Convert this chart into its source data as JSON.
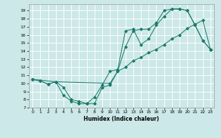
{
  "xlabel": "Humidex (Indice chaleur)",
  "background_color": "#cce8e8",
  "grid_color": "#ffffff",
  "line_color": "#1a7a6a",
  "xlim": [
    -0.5,
    23.5
  ],
  "ylim": [
    7,
    19.8
  ],
  "xticks": [
    0,
    1,
    2,
    3,
    4,
    5,
    6,
    7,
    8,
    9,
    10,
    11,
    12,
    13,
    14,
    15,
    16,
    17,
    18,
    19,
    20,
    21,
    22,
    23
  ],
  "yticks": [
    7,
    8,
    9,
    10,
    11,
    12,
    13,
    14,
    15,
    16,
    17,
    18,
    19
  ],
  "line1_x": [
    0,
    1,
    2,
    3,
    4,
    5,
    6,
    7,
    8,
    9,
    10,
    11,
    12,
    13,
    14,
    15,
    16,
    17,
    18,
    19,
    20,
    21,
    22,
    23
  ],
  "line1_y": [
    10.5,
    10.3,
    9.9,
    10.2,
    8.5,
    7.8,
    7.5,
    7.5,
    8.3,
    9.8,
    11.5,
    11.7,
    16.5,
    16.7,
    14.8,
    15.5,
    17.2,
    18.3,
    19.2,
    19.2,
    19.0,
    17.2,
    15.3,
    14.2
  ],
  "line2_x": [
    0,
    1,
    2,
    3,
    4,
    5,
    6,
    7,
    8,
    9,
    10,
    11,
    12,
    13,
    14,
    15,
    16,
    17,
    18,
    19,
    20,
    21,
    22,
    23
  ],
  "line2_y": [
    10.5,
    10.3,
    9.9,
    10.2,
    9.5,
    8.0,
    7.8,
    7.5,
    7.5,
    9.5,
    9.8,
    11.5,
    14.5,
    16.5,
    16.7,
    16.7,
    17.5,
    19.0,
    19.2,
    19.2,
    19.0,
    17.2,
    15.3,
    14.2
  ],
  "line3_x": [
    0,
    3,
    10,
    11,
    12,
    13,
    14,
    15,
    16,
    17,
    18,
    19,
    20,
    21,
    22,
    23
  ],
  "line3_y": [
    10.5,
    10.2,
    10.0,
    11.5,
    12.0,
    12.8,
    13.2,
    13.8,
    14.2,
    14.8,
    15.5,
    16.0,
    16.8,
    17.3,
    17.8,
    14.2
  ]
}
